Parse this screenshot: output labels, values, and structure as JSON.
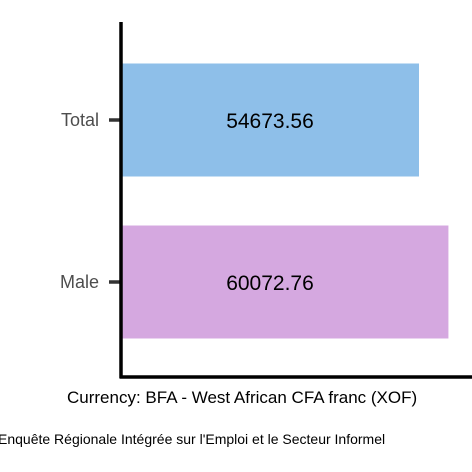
{
  "chart_data": {
    "type": "bar",
    "orientation": "horizontal",
    "categories": [
      "Total",
      "Male"
    ],
    "values": [
      54673.56,
      60072.76
    ],
    "data_labels": [
      "54673.56",
      "60072.76"
    ],
    "colors": [
      "#8ebfe9",
      "#d5a8e0"
    ],
    "xlabel": "Currency: BFA - West African CFA franc (XOF)",
    "ylabel": "",
    "xlim": [
      0,
      62000
    ],
    "grid": false,
    "legend": "none"
  },
  "source_note": "Enquête Régionale Intégrée sur l'Emploi et le Secteur Informel"
}
